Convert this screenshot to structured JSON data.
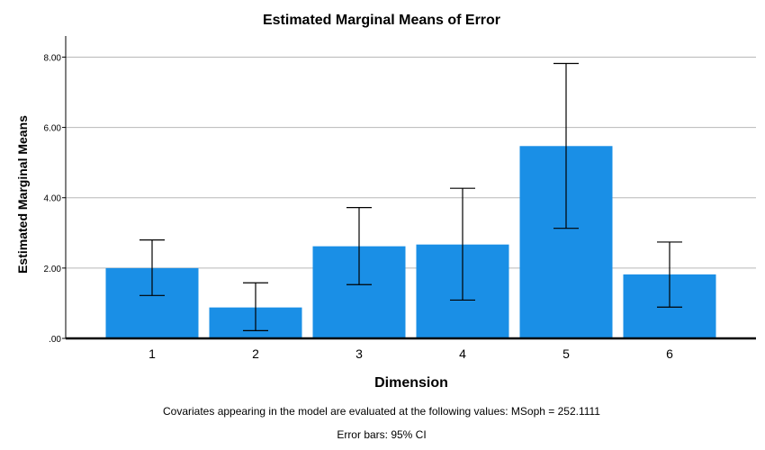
{
  "chart_data": {
    "type": "bar",
    "title": "Estimated Marginal Means of Error",
    "xlabel": "Dimension",
    "ylabel": "Estimated Marginal Means",
    "categories": [
      "1",
      "2",
      "3",
      "4",
      "5",
      "6"
    ],
    "values": [
      2.0,
      0.88,
      2.62,
      2.67,
      5.47,
      1.82
    ],
    "ci_lower": [
      1.22,
      0.22,
      1.53,
      1.09,
      3.13,
      0.89
    ],
    "ci_upper": [
      2.8,
      1.58,
      3.72,
      4.27,
      7.82,
      2.74
    ],
    "ylim": [
      0,
      8.6
    ],
    "yticks": [
      0,
      2,
      4,
      6,
      8
    ],
    "ytick_labels": [
      ".00",
      "2.00",
      "4.00",
      "6.00",
      "8.00"
    ],
    "grid": true,
    "bar_color": "#1a8fe6",
    "footnotes": [
      "Covariates appearing in the model are evaluated at the following values: MSoph = 252.1111",
      "Error bars: 95% CI"
    ]
  }
}
